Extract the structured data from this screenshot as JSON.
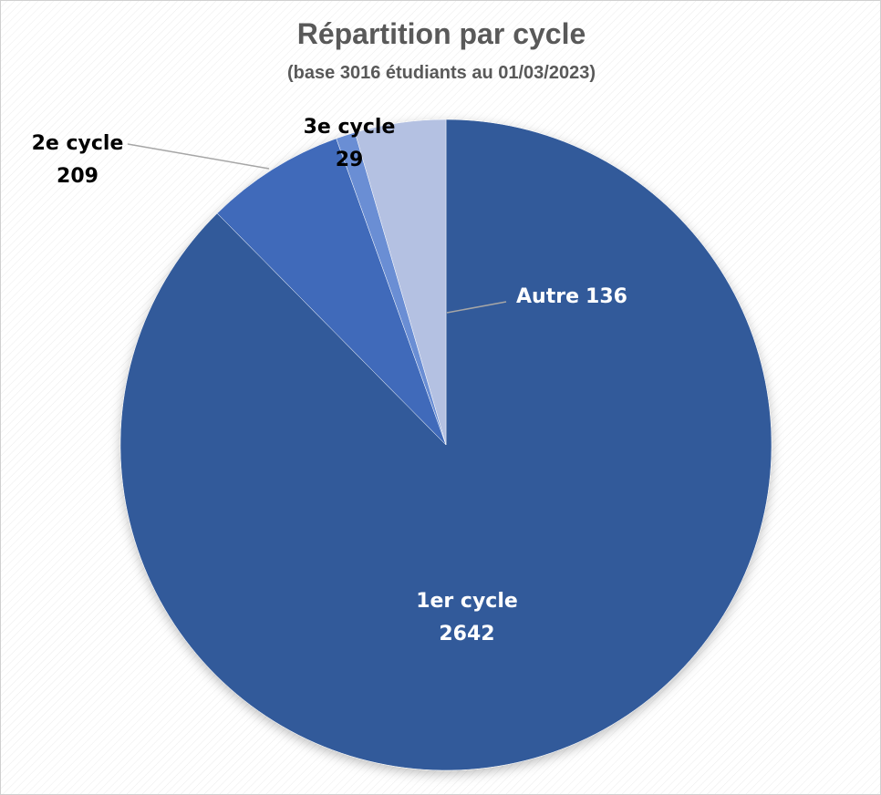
{
  "chart_data": {
    "type": "pie",
    "title": "Répartition par cycle",
    "subtitle": "(base 3016 étudiants au 01/03/2023)",
    "categories": [
      "1er cycle",
      "2e cycle",
      "3e cycle",
      "Autre"
    ],
    "values": [
      2642,
      209,
      29,
      136
    ],
    "colors": [
      "#335a9a",
      "#3f6bba",
      "#6b8ed4",
      "#b4c1e2"
    ]
  }
}
